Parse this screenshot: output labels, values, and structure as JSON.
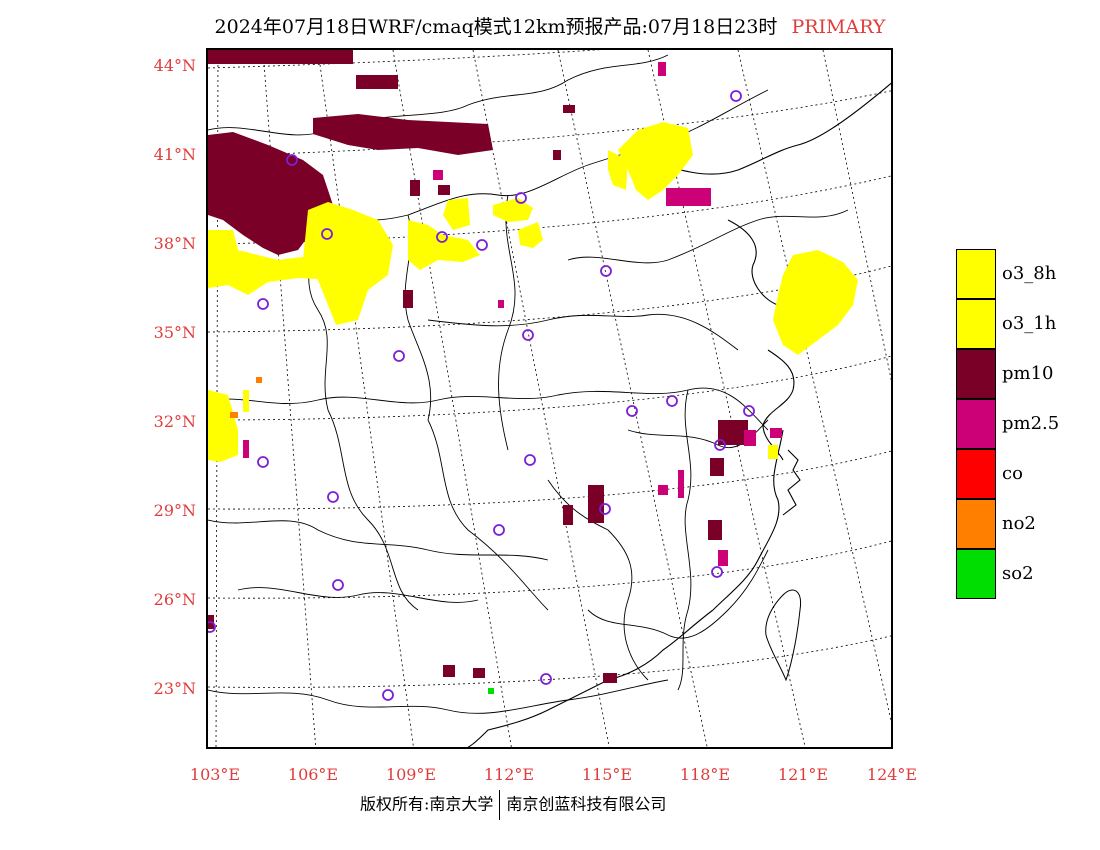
{
  "title": {
    "main": "2024年07月18日WRF/cmaq模式12km预报产品:07月18日23时",
    "tag": "PRIMARY"
  },
  "lat_labels": [
    "44°N",
    "41°N",
    "38°N",
    "35°N",
    "32°N",
    "29°N",
    "26°N",
    "23°N"
  ],
  "lon_labels": [
    "103°E",
    "106°E",
    "109°E",
    "112°E",
    "115°E",
    "118°E",
    "121°E",
    "124°E"
  ],
  "legend": [
    {
      "label": "o3_8h",
      "color": "#ffff00"
    },
    {
      "label": "o3_1h",
      "color": "#ffff00"
    },
    {
      "label": "pm10",
      "color": "#7a0028"
    },
    {
      "label": "pm2.5",
      "color": "#cc0077"
    },
    {
      "label": "co",
      "color": "#ff0000"
    },
    {
      "label": "no2",
      "color": "#ff7f00"
    },
    {
      "label": "so2",
      "color": "#00dd00"
    }
  ],
  "footer": {
    "left": "版权所有:南京大学",
    "right": "南京创蓝科技有限公司"
  },
  "colors": {
    "label_red": "#e03c3c",
    "station_ring": "#7b1fd8"
  }
}
